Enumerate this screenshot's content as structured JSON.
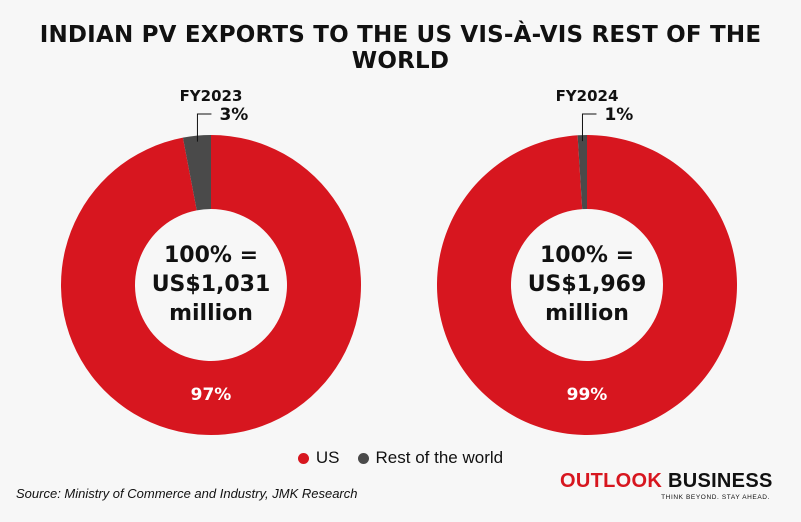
{
  "title": "INDIAN PV EXPORTS TO THE US VIS-À-VIS REST OF THE WORLD",
  "colors": {
    "us": "#d7161f",
    "rest": "#4a4a4a",
    "brand_red": "#d7161f"
  },
  "chart_data": [
    {
      "type": "pie",
      "title": "FY2023",
      "labels": [
        "US",
        "Rest of the world"
      ],
      "values": [
        97,
        3
      ],
      "value_labels": [
        "97%",
        "3%"
      ],
      "center_text": [
        "100% =",
        "US$1,031",
        "million"
      ]
    },
    {
      "type": "pie",
      "title": "FY2024",
      "labels": [
        "US",
        "Rest of the world"
      ],
      "values": [
        99,
        1
      ],
      "value_labels": [
        "99%",
        "1%"
      ],
      "center_text": [
        "100% =",
        "US$1,969",
        "million"
      ]
    }
  ],
  "legend": [
    {
      "label": "US",
      "color": "#d7161f"
    },
    {
      "label": "Rest of the world",
      "color": "#4a4a4a"
    }
  ],
  "source": "Source: Ministry of Commerce and Industry, JMK Research",
  "brand": {
    "name_part1": "OUTLOOK",
    "name_part2": "BUSINESS",
    "tagline": "THINK BEYOND. STAY AHEAD."
  }
}
